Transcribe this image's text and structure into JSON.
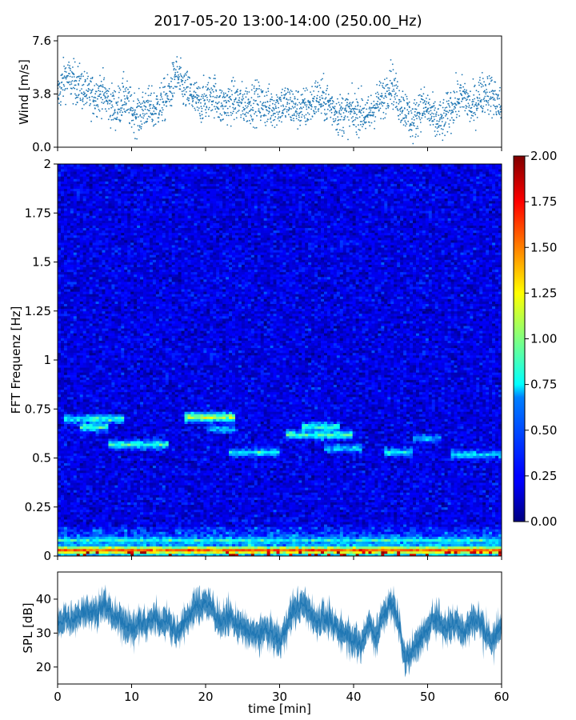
{
  "figure": {
    "title": "2017-05-20 13:00-14:00 (250.00_Hz)"
  },
  "chart_data": [
    {
      "type": "scatter",
      "title": "",
      "xlabel": "",
      "ylabel": "Wind [m/s]",
      "xlim": [
        0,
        60
      ],
      "ylim": [
        0.0,
        7.6
      ],
      "yticks": [
        "0.0",
        "3.8",
        "7.6"
      ],
      "marker_color": "#1f77b4",
      "grid": false,
      "trend": {
        "x": [
          0,
          1,
          2,
          3,
          4,
          5,
          6,
          7,
          8,
          9,
          10,
          11,
          12,
          13,
          14,
          15,
          16,
          17,
          18,
          19,
          20,
          21,
          22,
          23,
          24,
          25,
          26,
          27,
          28,
          29,
          30,
          31,
          32,
          33,
          34,
          35,
          36,
          37,
          38,
          39,
          40,
          41,
          42,
          43,
          44,
          45,
          46,
          47,
          48,
          49,
          50,
          51,
          52,
          53,
          54,
          55,
          56,
          57,
          58,
          59,
          60
        ],
        "y": [
          3.5,
          4.8,
          4.5,
          4.2,
          3.6,
          3.5,
          3.8,
          3.0,
          2.6,
          3.5,
          2.5,
          2.2,
          2.8,
          2.5,
          3.0,
          3.5,
          5.0,
          4.0,
          3.6,
          3.0,
          3.2,
          3.8,
          2.8,
          3.0,
          3.2,
          2.9,
          3.0,
          3.1,
          2.8,
          2.7,
          2.9,
          3.0,
          2.7,
          2.6,
          2.8,
          3.4,
          3.2,
          2.8,
          2.2,
          2.4,
          2.3,
          2.5,
          2.0,
          3.0,
          3.2,
          4.6,
          3.2,
          2.6,
          1.6,
          2.8,
          2.6,
          1.8,
          1.7,
          2.6,
          3.2,
          3.5,
          2.5,
          3.6,
          3.8,
          3.4,
          2.6
        ]
      }
    },
    {
      "type": "heatmap",
      "title": "",
      "xlabel": "",
      "ylabel": "FFT Frequenz [Hz]",
      "xlim": [
        0,
        60
      ],
      "ylim": [
        0,
        2
      ],
      "yticks": [
        "0",
        "0.25",
        "0.5",
        "0.75",
        "1",
        "1.25",
        "1.5",
        "1.75",
        "2"
      ],
      "colormap": "jet",
      "colorbar": {
        "range": [
          0.0,
          2.0
        ],
        "ticks": [
          "0.00",
          "0.25",
          "0.50",
          "0.75",
          "1.00",
          "1.25",
          "1.50",
          "1.75",
          "2.00"
        ]
      },
      "features": [
        {
          "x0": 1,
          "x1": 9,
          "f": 0.7,
          "level": 0.85
        },
        {
          "x0": 3,
          "x1": 7,
          "f": 0.66,
          "level": 1.0
        },
        {
          "x0": 7,
          "x1": 15,
          "f": 0.57,
          "level": 0.85
        },
        {
          "x0": 17,
          "x1": 24,
          "f": 0.71,
          "level": 1.2
        },
        {
          "x0": 20,
          "x1": 24,
          "f": 0.65,
          "level": 0.7
        },
        {
          "x0": 23,
          "x1": 30,
          "f": 0.53,
          "level": 0.75
        },
        {
          "x0": 31,
          "x1": 40,
          "f": 0.62,
          "level": 0.9
        },
        {
          "x0": 33,
          "x1": 38,
          "f": 0.66,
          "level": 0.9
        },
        {
          "x0": 36,
          "x1": 41,
          "f": 0.55,
          "level": 0.7
        },
        {
          "x0": 44,
          "x1": 48,
          "f": 0.53,
          "level": 0.75
        },
        {
          "x0": 48,
          "x1": 52,
          "f": 0.6,
          "level": 0.65
        },
        {
          "x0": 53,
          "x1": 60,
          "f": 0.52,
          "level": 0.7
        },
        {
          "x0": 0,
          "x1": 60,
          "f": 0.03,
          "level": 1.6
        },
        {
          "x0": 0,
          "x1": 60,
          "f": 0.08,
          "level": 0.8
        }
      ]
    },
    {
      "type": "area",
      "title": "",
      "xlabel": "time [min]",
      "ylabel": "SPL [dB]",
      "xlim": [
        0,
        60
      ],
      "ylim": [
        15,
        48
      ],
      "xticks": [
        "0",
        "10",
        "20",
        "30",
        "40",
        "50",
        "60"
      ],
      "yticks": [
        "20",
        "30",
        "40"
      ],
      "color": "#1f77b4",
      "grid": false,
      "x": [
        0,
        1,
        2,
        3,
        4,
        5,
        6,
        7,
        8,
        9,
        10,
        11,
        12,
        13,
        14,
        15,
        16,
        17,
        18,
        19,
        20,
        21,
        22,
        23,
        24,
        25,
        26,
        27,
        28,
        29,
        30,
        31,
        32,
        33,
        34,
        35,
        36,
        37,
        38,
        39,
        40,
        41,
        42,
        43,
        44,
        45,
        46,
        47,
        48,
        49,
        50,
        51,
        52,
        53,
        54,
        55,
        56,
        57,
        58,
        59,
        60
      ],
      "y": [
        32,
        35,
        33,
        36,
        37,
        36,
        38,
        37,
        34,
        33,
        31,
        33,
        32,
        35,
        33,
        34,
        30,
        33,
        36,
        38,
        39,
        37,
        33,
        35,
        33,
        32,
        30,
        29,
        31,
        30,
        27,
        33,
        37,
        38,
        37,
        33,
        35,
        33,
        31,
        30,
        28,
        26,
        33,
        29,
        35,
        39,
        34,
        22,
        25,
        28,
        31,
        35,
        32,
        32,
        33,
        30,
        34,
        33,
        30,
        27,
        34
      ]
    }
  ]
}
